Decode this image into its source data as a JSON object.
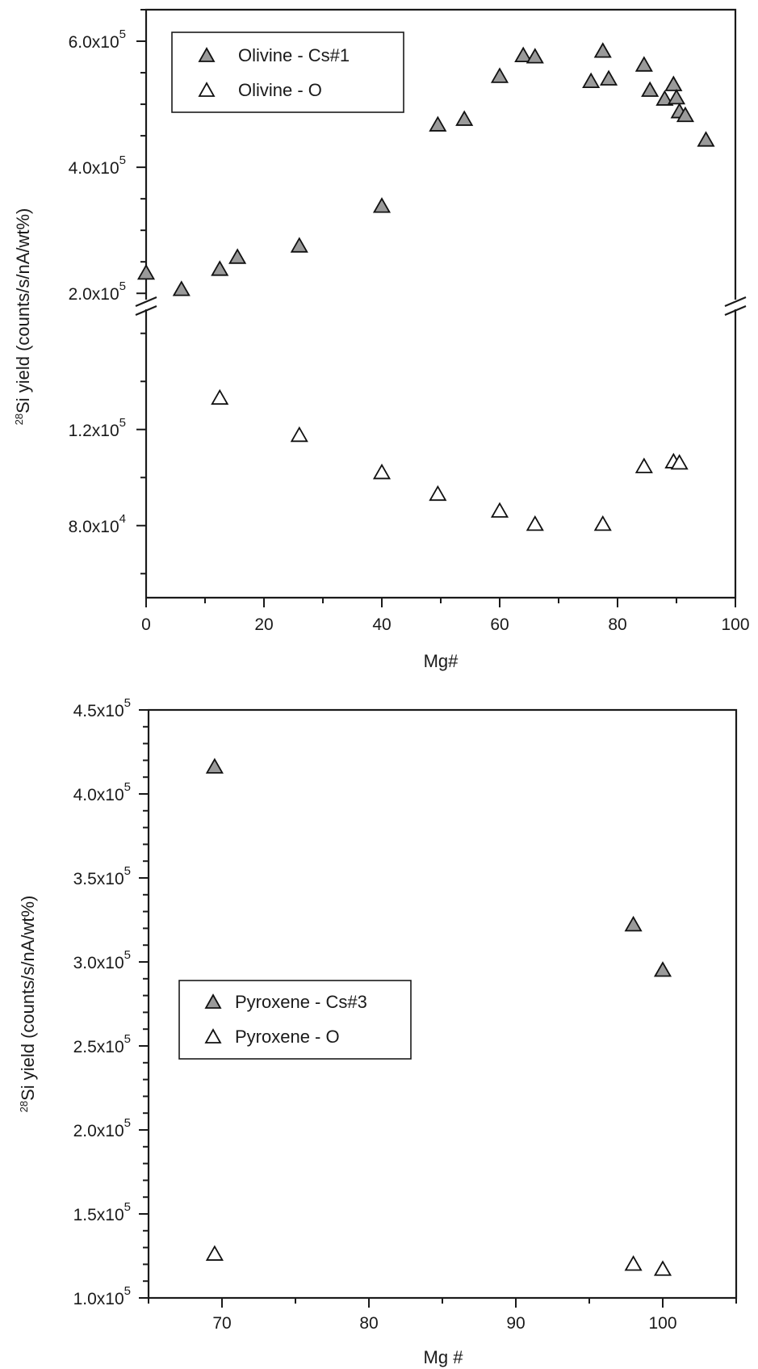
{
  "colors": {
    "filled_marker": "#9a9a9a",
    "open_marker": "#ffffff",
    "marker_stroke": "#111111",
    "axis": "#1a1a1a"
  },
  "chart_data": [
    {
      "type": "scatter",
      "title": "",
      "xlabel": "Mg#",
      "ylabel_sup": "28",
      "ylabel": "Si yield (counts/s/nA/wt%)",
      "xlim": [
        0,
        100
      ],
      "x_ticks": [
        0,
        20,
        40,
        60,
        80,
        100
      ],
      "x_tick_labels": [
        "0",
        "20",
        "40",
        "60",
        "80",
        "100"
      ],
      "broken_y_axis": true,
      "upper_segment_ylim": [
        190000,
        650000
      ],
      "lower_segment_ylim": [
        50000,
        170000
      ],
      "y_tick_labels": [
        {
          "value": 600000,
          "mantissa": "6.0x10",
          "exp": "5"
        },
        {
          "value": 400000,
          "mantissa": "4.0x10",
          "exp": "5"
        },
        {
          "value": 200000,
          "mantissa": "2.0x10",
          "exp": "5"
        },
        {
          "value": 120000,
          "mantissa": "1.2x10",
          "exp": "5"
        },
        {
          "value": 80000,
          "mantissa": "8.0x10",
          "exp": "4"
        }
      ],
      "legend_position": "top-left",
      "series": [
        {
          "name": "Olivine - Cs#1",
          "marker": "filled-triangle",
          "points": [
            [
              0,
              232000
            ],
            [
              6,
              206000
            ],
            [
              12.5,
              238000
            ],
            [
              15.5,
              257000
            ],
            [
              26,
              275000
            ],
            [
              40,
              338000
            ],
            [
              49.5,
              467000
            ],
            [
              54,
              476000
            ],
            [
              60,
              544000
            ],
            [
              64,
              577000
            ],
            [
              66,
              575000
            ],
            [
              75.5,
              536000
            ],
            [
              77.5,
              584000
            ],
            [
              78.5,
              540000
            ],
            [
              84.5,
              562000
            ],
            [
              85.5,
              522000
            ],
            [
              88,
              508000
            ],
            [
              89.5,
              531000
            ],
            [
              90,
              510000
            ],
            [
              90.5,
              488000
            ],
            [
              91.5,
              482000
            ],
            [
              95,
              443000
            ]
          ]
        },
        {
          "name": "Olivine - O",
          "marker": "open-triangle",
          "points": [
            [
              12.5,
              133000
            ],
            [
              26,
              117500
            ],
            [
              40,
              102000
            ],
            [
              49.5,
              93000
            ],
            [
              60,
              86000
            ],
            [
              66,
              80500
            ],
            [
              77.5,
              80500
            ],
            [
              84.5,
              104500
            ],
            [
              89.5,
              106500
            ],
            [
              90.5,
              106000
            ]
          ]
        }
      ]
    },
    {
      "type": "scatter",
      "title": "",
      "xlabel": "Mg #",
      "ylabel_sup": "28",
      "ylabel": "Si yield (counts/s/nA/wt%)",
      "xlim": [
        65,
        105
      ],
      "ylim": [
        100000,
        450000
      ],
      "x_ticks": [
        70,
        80,
        90,
        100
      ],
      "x_tick_labels": [
        "70",
        "80",
        "90",
        "100"
      ],
      "y_tick_labels": [
        {
          "value": 450000,
          "mantissa": "4.5x10",
          "exp": "5"
        },
        {
          "value": 400000,
          "mantissa": "4.0x10",
          "exp": "5"
        },
        {
          "value": 350000,
          "mantissa": "3.5x10",
          "exp": "5"
        },
        {
          "value": 300000,
          "mantissa": "3.0x10",
          "exp": "5"
        },
        {
          "value": 250000,
          "mantissa": "2.5x10",
          "exp": "5"
        },
        {
          "value": 200000,
          "mantissa": "2.0x10",
          "exp": "5"
        },
        {
          "value": 150000,
          "mantissa": "1.5x10",
          "exp": "5"
        },
        {
          "value": 100000,
          "mantissa": "1.0x10",
          "exp": "5"
        }
      ],
      "legend_position": "center-left",
      "series": [
        {
          "name": "Pyroxene - Cs#3",
          "marker": "filled-triangle",
          "points": [
            [
              69.5,
              416000
            ],
            [
              98,
              322000
            ],
            [
              100,
              295000
            ]
          ]
        },
        {
          "name": "Pyroxene - O",
          "marker": "open-triangle",
          "points": [
            [
              69.5,
              126000
            ],
            [
              98,
              120000
            ],
            [
              100,
              117000
            ]
          ]
        }
      ]
    }
  ]
}
